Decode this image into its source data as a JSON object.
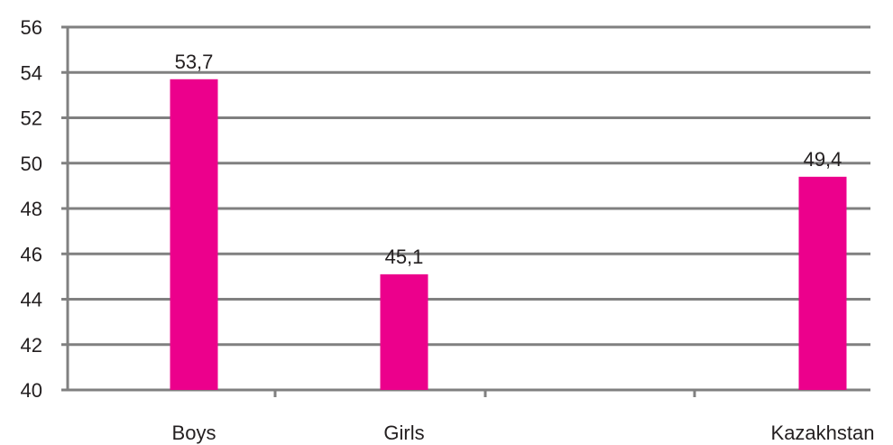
{
  "chart_data": {
    "type": "bar",
    "categories": [
      "Boys",
      "Girls",
      "",
      "Kazakhstan"
    ],
    "values": [
      53.7,
      45.1,
      null,
      49.4
    ],
    "data_labels": [
      "53,7",
      "45,1",
      "",
      "49,4"
    ],
    "ylim": [
      40,
      56
    ],
    "yticks": [
      40,
      42,
      44,
      46,
      48,
      50,
      52,
      54,
      56
    ],
    "title": "",
    "xlabel": "",
    "ylabel": "",
    "grid": true,
    "legend": "none",
    "colors": {
      "bar": "#ec008c",
      "grid": "#808080",
      "axis": "#808080",
      "text": "#231f20"
    }
  }
}
